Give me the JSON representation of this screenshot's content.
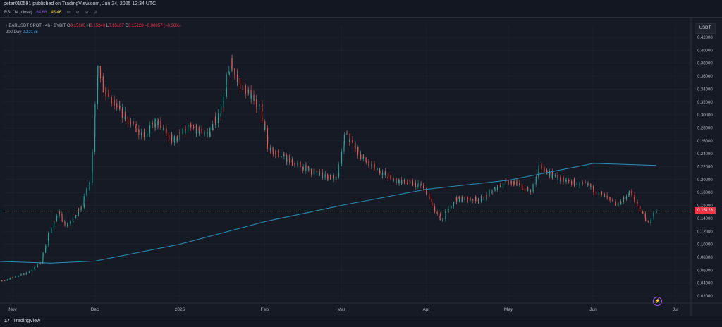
{
  "header": {
    "publisher_text": "petar010591 published on TradingView.com, Jun 24, 2025 12:34 UTC"
  },
  "indicator_bar": {
    "rsi_label": "RSI (14, close)",
    "rsi_value_1": "64.66",
    "rsi_value_2": "45.46",
    "icons": "⊘ ⊘ ⊘ ⊘"
  },
  "legend": {
    "symbol": "HBARUSDT SPOT · 4h · BYBIT",
    "o_label": "O",
    "o_value": "0.15185",
    "h_label": "H",
    "h_value": "0.15240",
    "l_label": "L",
    "l_value": "0.15107",
    "c_label": "C",
    "c_value": "0.15128",
    "change": "−0.00057 (−0.38%)",
    "ma_label": "200 Day",
    "ma_value": "0.22175"
  },
  "currency_button": "USDT",
  "last_price_label": "0.15128",
  "footer": {
    "brand": "TradingView",
    "logo_mark": "17"
  },
  "colors": {
    "background": "#161a25",
    "up": "#26a69a",
    "down": "#ef5350",
    "ma_line": "#2a8fb8",
    "price_line": "#f23645"
  },
  "chart_data": {
    "type": "line",
    "title": "",
    "subtitle": "",
    "series_kind": "candlestick",
    "xlabel": "",
    "ylabel": "",
    "x_ticks": [
      "Nov",
      "Dec",
      "2025",
      "Feb",
      "Mar",
      "Apr",
      "May",
      "Jun",
      "Jul"
    ],
    "y_ticks": [
      "0.02000",
      "0.04000",
      "0.06000",
      "0.08000",
      "0.10000",
      "0.12000",
      "0.14000",
      "0.16000",
      "0.18000",
      "0.20000",
      "0.22000",
      "0.24000",
      "0.26000",
      "0.28000",
      "0.30000",
      "0.32000",
      "0.34000",
      "0.36000",
      "0.38000",
      "0.40000",
      "0.42000"
    ],
    "ylim": [
      0.0,
      0.43
    ],
    "x": [
      "2024-10-23",
      "2024-10-29",
      "2024-11-04",
      "2024-11-08",
      "2024-11-12",
      "2024-11-15",
      "2024-11-18",
      "2024-11-21",
      "2024-11-24",
      "2024-11-27",
      "2024-11-30",
      "2024-12-02",
      "2024-12-03",
      "2024-12-05",
      "2024-12-08",
      "2024-12-12",
      "2024-12-16",
      "2024-12-20",
      "2024-12-24",
      "2024-12-30",
      "2025-01-05",
      "2025-01-12",
      "2025-01-17",
      "2025-01-20",
      "2025-01-23",
      "2025-01-27",
      "2025-01-31",
      "2025-02-03",
      "2025-02-10",
      "2025-02-20",
      "2025-02-28",
      "2025-03-03",
      "2025-03-10",
      "2025-03-20",
      "2025-03-31",
      "2025-04-07",
      "2025-04-12",
      "2025-04-22",
      "2025-05-01",
      "2025-05-10",
      "2025-05-13",
      "2025-05-20",
      "2025-05-31",
      "2025-06-10",
      "2025-06-15",
      "2025-06-22",
      "2025-06-24"
    ],
    "close": [
      0.049,
      0.043,
      0.052,
      0.058,
      0.072,
      0.12,
      0.15,
      0.13,
      0.14,
      0.16,
      0.2,
      0.33,
      0.37,
      0.34,
      0.32,
      0.3,
      0.28,
      0.27,
      0.29,
      0.26,
      0.28,
      0.27,
      0.31,
      0.38,
      0.35,
      0.33,
      0.31,
      0.25,
      0.23,
      0.21,
      0.2,
      0.27,
      0.23,
      0.2,
      0.19,
      0.135,
      0.17,
      0.17,
      0.2,
      0.18,
      0.22,
      0.2,
      0.19,
      0.16,
      0.18,
      0.13,
      0.151
    ],
    "series": [
      {
        "name": "200 Day",
        "x": [
          "2024-10-23",
          "2024-11-15",
          "2024-12-01",
          "2025-01-01",
          "2025-02-01",
          "2025-03-01",
          "2025-04-01",
          "2025-05-01",
          "2025-06-01",
          "2025-06-24"
        ],
        "values": [
          0.074,
          0.071,
          0.074,
          0.1,
          0.135,
          0.16,
          0.185,
          0.199,
          0.225,
          0.222
        ]
      }
    ],
    "last_value": 0.15128
  }
}
